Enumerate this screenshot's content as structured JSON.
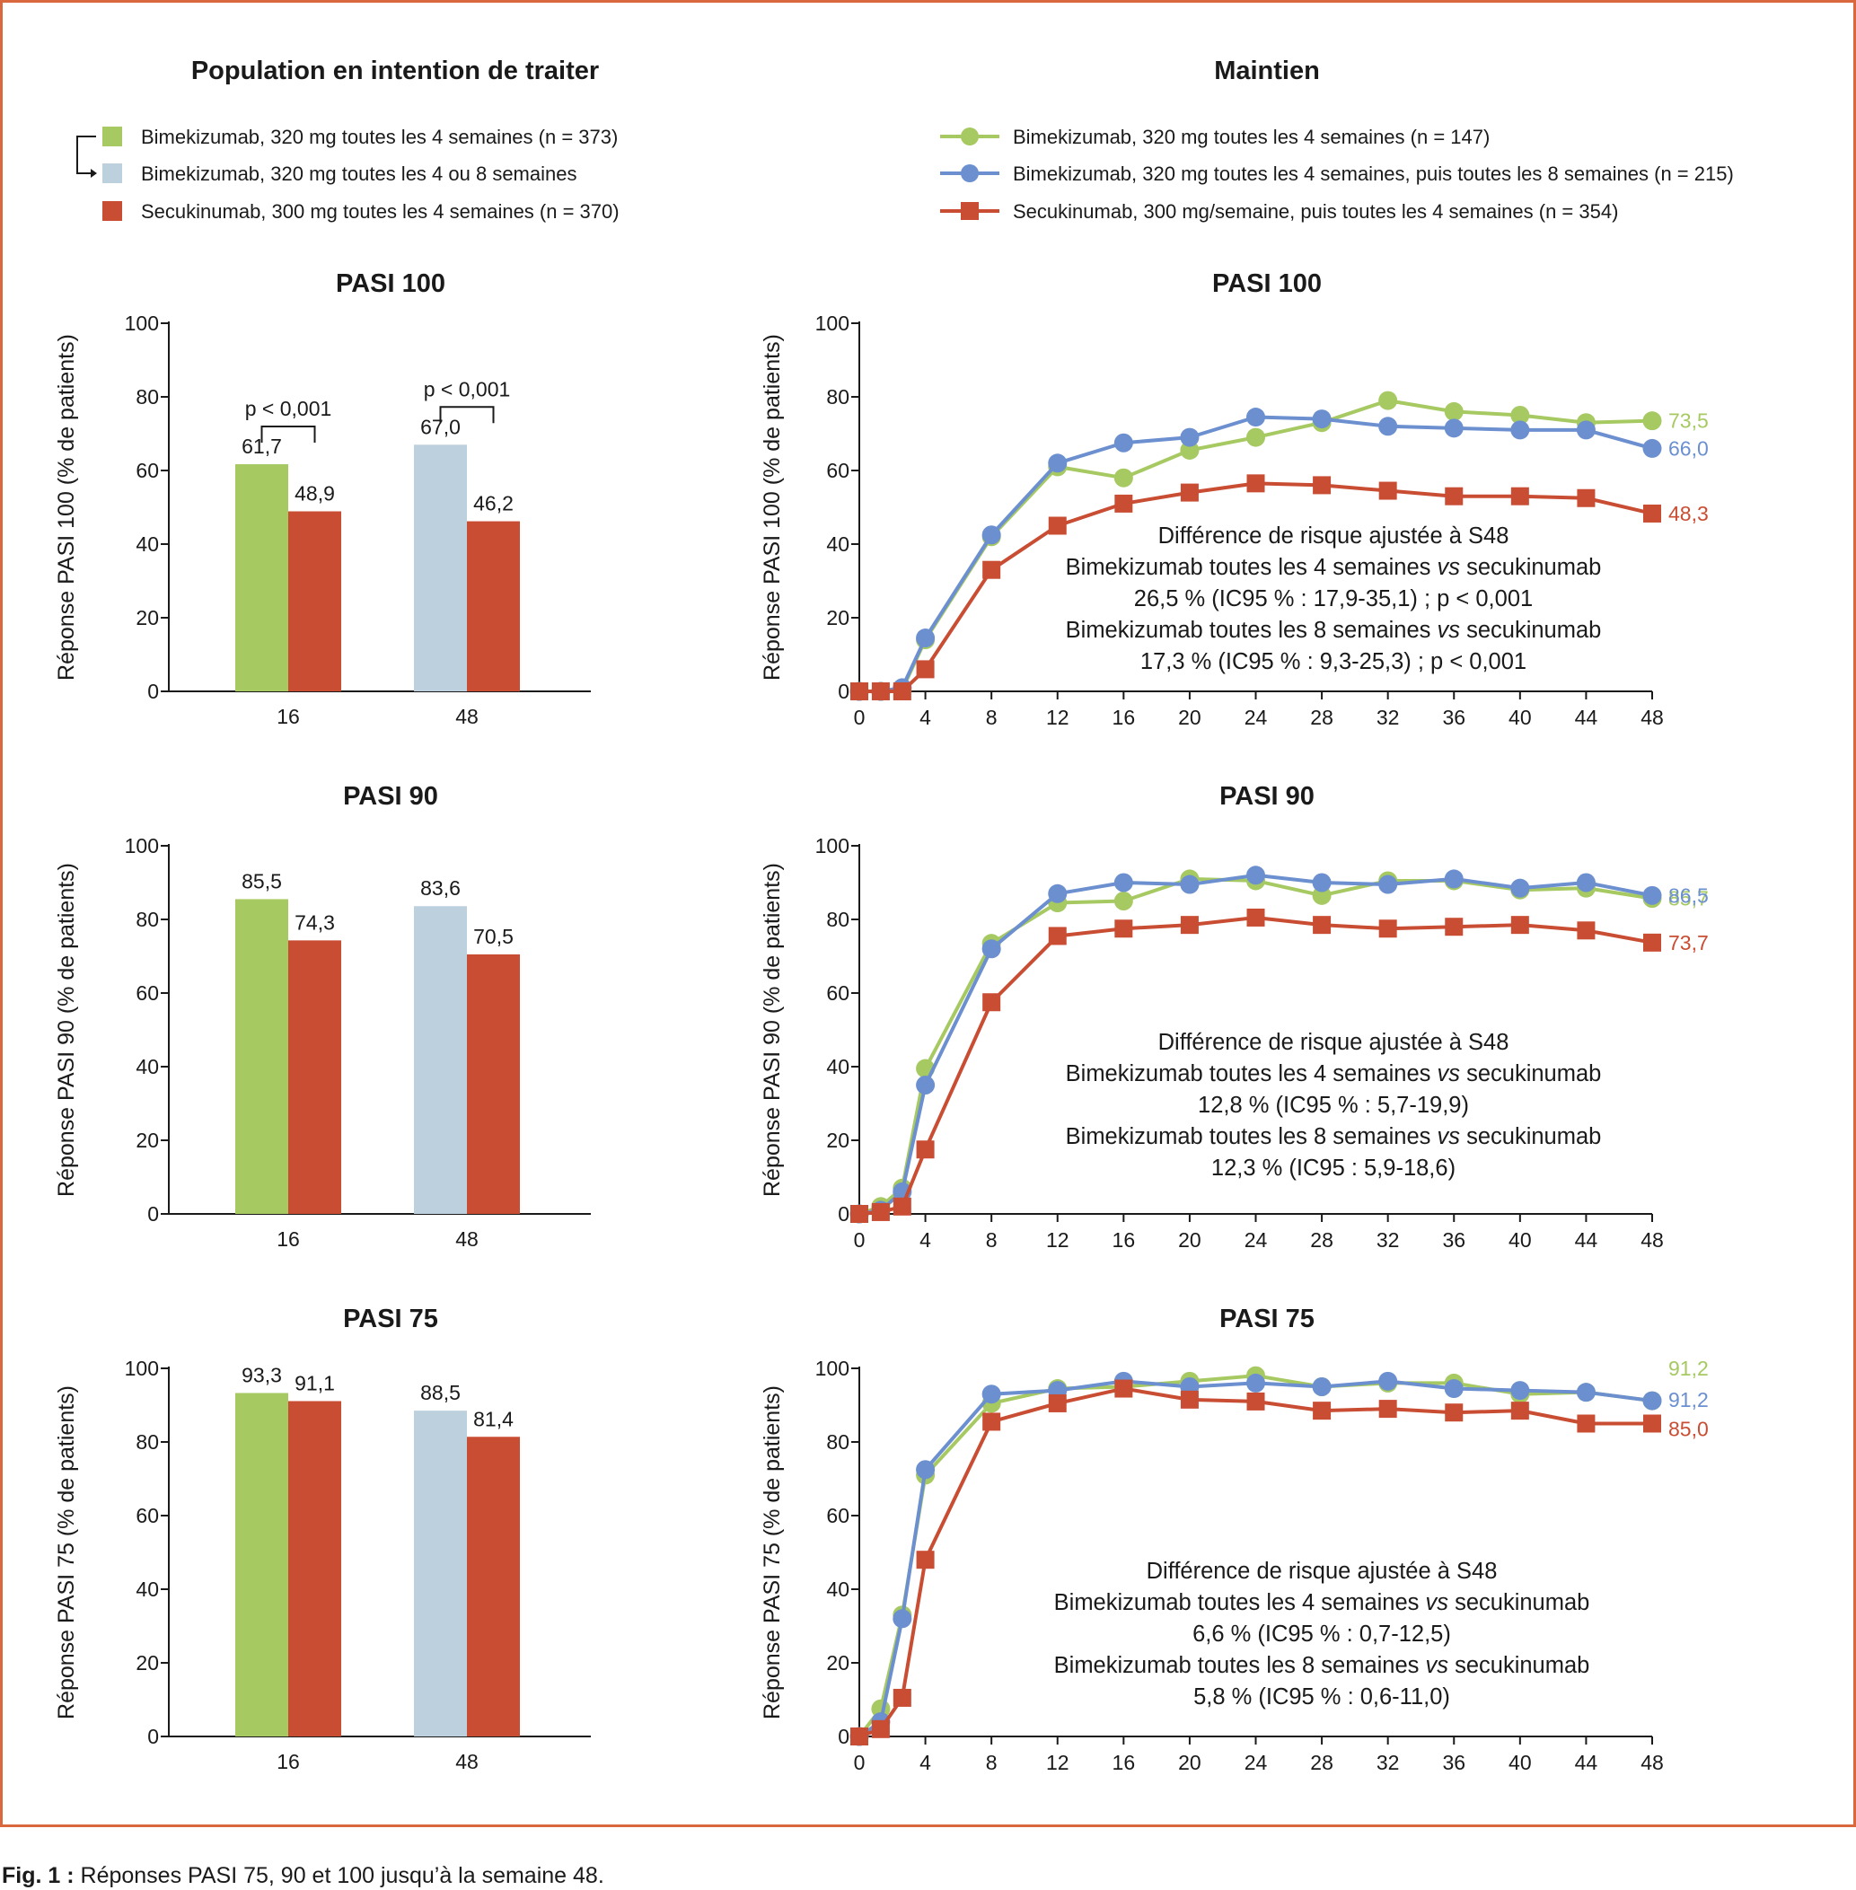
{
  "colors": {
    "green": "#a6c962",
    "lightblue": "#bdd0de",
    "blue": "#6b8fcf",
    "red": "#c94d33",
    "frame": "#d9683f",
    "text": "#1a1a1a"
  },
  "left_title": "Population en intention de traiter",
  "right_title": "Maintien",
  "left_legend": [
    {
      "label": "Bimekizumab, 320 mg toutes les 4 semaines (n = 373)",
      "color": "#a6c962"
    },
    {
      "label": "Bimekizumab, 320 mg toutes les 4 ou 8 semaines",
      "color": "#bdd0de"
    },
    {
      "label": "Secukinumab, 300 mg toutes les 4 semaines (n = 370)",
      "color": "#c94d33"
    }
  ],
  "right_legend": [
    {
      "label": "Bimekizumab, 320 mg toutes les 4 semaines (n = 147)",
      "color": "#a6c962",
      "marker": "circle"
    },
    {
      "label": "Bimekizumab, 320 mg toutes les 4 semaines, puis toutes les 8 semaines (n = 215)",
      "color": "#6b8fcf",
      "marker": "circle"
    },
    {
      "label": "Secukinumab, 300 mg/semaine, puis toutes les 4 semaines (n = 354)",
      "color": "#c94d33",
      "marker": "square"
    }
  ],
  "caption": {
    "bold": "Fig. 1 :",
    "text": " Réponses PASI 75, 90 et 100 jusqu’à la semaine 48."
  },
  "chart_data": [
    {
      "type": "bar",
      "title": "PASI 100",
      "ylabel": "Réponse PASI 100 (% de patients)",
      "ylim": [
        0,
        100
      ],
      "yticks": [
        0,
        20,
        40,
        60,
        80,
        100
      ],
      "categories": [
        "16",
        "48"
      ],
      "bars": [
        {
          "category": "16",
          "value": 61.7,
          "label": "61,7",
          "color": "#a6c962"
        },
        {
          "category": "16",
          "value": 48.9,
          "label": "48,9",
          "color": "#c94d33"
        },
        {
          "category": "48",
          "value": 67.0,
          "label": "67,0",
          "color": "#bdd0de"
        },
        {
          "category": "48",
          "value": 46.2,
          "label": "46,2",
          "color": "#c94d33"
        }
      ],
      "pvalues": [
        {
          "category": "16",
          "text": "p < 0,001"
        },
        {
          "category": "48",
          "text": "p < 0,001"
        }
      ]
    },
    {
      "type": "bar",
      "title": "PASI 90",
      "ylabel": "Réponse PASI 90 (% de patients)",
      "ylim": [
        0,
        100
      ],
      "yticks": [
        0,
        20,
        40,
        60,
        80,
        100
      ],
      "categories": [
        "16",
        "48"
      ],
      "bars": [
        {
          "category": "16",
          "value": 85.5,
          "label": "85,5",
          "color": "#a6c962"
        },
        {
          "category": "16",
          "value": 74.3,
          "label": "74,3",
          "color": "#c94d33"
        },
        {
          "category": "48",
          "value": 83.6,
          "label": "83,6",
          "color": "#bdd0de"
        },
        {
          "category": "48",
          "value": 70.5,
          "label": "70,5",
          "color": "#c94d33"
        }
      ],
      "pvalues": []
    },
    {
      "type": "bar",
      "title": "PASI 75",
      "ylabel": "Réponse PASI 75 (% de patients)",
      "ylim": [
        0,
        100
      ],
      "yticks": [
        0,
        20,
        40,
        60,
        80,
        100
      ],
      "categories": [
        "16",
        "48"
      ],
      "bars": [
        {
          "category": "16",
          "value": 93.3,
          "label": "93,3",
          "color": "#a6c962"
        },
        {
          "category": "16",
          "value": 91.1,
          "label": "91,1",
          "color": "#c94d33"
        },
        {
          "category": "48",
          "value": 88.5,
          "label": "88,5",
          "color": "#bdd0de"
        },
        {
          "category": "48",
          "value": 81.4,
          "label": "81,4",
          "color": "#c94d33"
        }
      ],
      "pvalues": []
    },
    {
      "type": "line",
      "title": "PASI 100",
      "ylabel": "Réponse PASI 100 (% de patients)",
      "ylim": [
        0,
        100
      ],
      "xlim": [
        0,
        48
      ],
      "yticks": [
        0,
        20,
        40,
        60,
        80,
        100
      ],
      "xticks": [
        0,
        4,
        8,
        12,
        16,
        20,
        24,
        28,
        32,
        36,
        40,
        44,
        48
      ],
      "series": [
        {
          "color": "#a6c962",
          "marker": "circle",
          "end_label": "73,5",
          "x": [
            0,
            1.3,
            2.6,
            4,
            8,
            12,
            16,
            20,
            24,
            28,
            32,
            36,
            40,
            44,
            48
          ],
          "y": [
            0,
            0,
            0.5,
            14,
            42,
            61,
            58,
            65.5,
            69,
            73,
            79,
            76,
            75,
            73,
            73.5
          ]
        },
        {
          "color": "#6b8fcf",
          "marker": "circle",
          "end_label": "66,0",
          "x": [
            0,
            1.3,
            2.6,
            4,
            8,
            12,
            16,
            20,
            24,
            28,
            32,
            36,
            40,
            44,
            48
          ],
          "y": [
            0,
            0,
            1,
            14.5,
            42.5,
            62,
            67.5,
            69,
            74.5,
            74,
            72,
            71.5,
            71,
            71,
            66
          ]
        },
        {
          "color": "#c94d33",
          "marker": "square",
          "end_label": "48,3",
          "x": [
            0,
            1.3,
            2.6,
            4,
            8,
            12,
            16,
            20,
            24,
            28,
            32,
            36,
            40,
            44,
            48
          ],
          "y": [
            0,
            0,
            0,
            6,
            33,
            45,
            51,
            54,
            56.5,
            56,
            54.5,
            53,
            53,
            52.5,
            48.3
          ]
        }
      ],
      "end_label_y": [
        73.5,
        66.0,
        48.3
      ],
      "annotation": [
        "Différence de risque ajustée à S48",
        "Bimekizumab toutes les 4 semaines vs secukinumab",
        "26,5 % (IC95 % : 17,9-35,1) ; p < 0,001",
        "Bimekizumab toutes les 8 semaines vs secukinumab",
        "17,3 % (IC95 % : 9,3-25,3) ; p < 0,001"
      ]
    },
    {
      "type": "line",
      "title": "PASI 90",
      "ylabel": "Réponse PASI 90 (% de patients)",
      "ylim": [
        0,
        100
      ],
      "xlim": [
        0,
        48
      ],
      "yticks": [
        0,
        20,
        40,
        60,
        80,
        100
      ],
      "xticks": [
        0,
        4,
        8,
        12,
        16,
        20,
        24,
        28,
        32,
        36,
        40,
        44,
        48
      ],
      "series": [
        {
          "color": "#a6c962",
          "marker": "circle",
          "end_label": "85,7",
          "x": [
            0,
            1.3,
            2.6,
            4,
            8,
            12,
            16,
            20,
            24,
            28,
            32,
            36,
            40,
            44,
            48
          ],
          "y": [
            0,
            2,
            7,
            39.5,
            73.5,
            84.5,
            85,
            91,
            90.5,
            86.5,
            90.5,
            90.5,
            88,
            88.5,
            85.7
          ]
        },
        {
          "color": "#6b8fcf",
          "marker": "circle",
          "end_label": "86,5",
          "x": [
            0,
            1.3,
            2.6,
            4,
            8,
            12,
            16,
            20,
            24,
            28,
            32,
            36,
            40,
            44,
            48
          ],
          "y": [
            0,
            1,
            6,
            35,
            72,
            87,
            90,
            89.5,
            92,
            90,
            89.5,
            91,
            88.5,
            90,
            86.5
          ]
        },
        {
          "color": "#c94d33",
          "marker": "square",
          "end_label": "73,7",
          "x": [
            0,
            1.3,
            2.6,
            4,
            8,
            12,
            16,
            20,
            24,
            28,
            32,
            36,
            40,
            44,
            48
          ],
          "y": [
            0,
            0.5,
            2,
            17.5,
            57.5,
            75.5,
            77.5,
            78.5,
            80.5,
            78.5,
            77.5,
            78,
            78.5,
            77,
            73.7
          ]
        }
      ],
      "end_label_y": [
        85.7,
        86.5,
        73.7
      ],
      "annotation": [
        "Différence de risque ajustée à S48",
        "Bimekizumab toutes les 4 semaines vs secukinumab",
        "12,8 % (IC95 % : 5,7-19,9)",
        "Bimekizumab toutes les 8 semaines vs secukinumab",
        "12,3 % (IC95 : 5,9-18,6)"
      ]
    },
    {
      "type": "line",
      "title": "PASI 75",
      "ylabel": "Réponse PASI 75 (% de patients)",
      "ylim": [
        0,
        100
      ],
      "xlim": [
        0,
        48
      ],
      "yticks": [
        0,
        20,
        40,
        60,
        80,
        100
      ],
      "xticks": [
        0,
        4,
        8,
        12,
        16,
        20,
        24,
        28,
        32,
        36,
        40,
        44,
        48
      ],
      "series": [
        {
          "color": "#a6c962",
          "marker": "circle",
          "end_label": "91,2",
          "x": [
            0,
            1.3,
            2.6,
            4,
            8,
            12,
            16,
            20,
            24,
            28,
            32,
            36,
            40,
            44,
            48
          ],
          "y": [
            0,
            7.5,
            33,
            71,
            90.5,
            94.5,
            95,
            96.5,
            98,
            95,
            96,
            96,
            93,
            93.5,
            91.2
          ]
        },
        {
          "color": "#6b8fcf",
          "marker": "circle",
          "end_label": "91,2",
          "x": [
            0,
            1.3,
            2.6,
            4,
            8,
            12,
            16,
            20,
            24,
            28,
            32,
            36,
            40,
            44,
            48
          ],
          "y": [
            0,
            4,
            32,
            72.5,
            93,
            94,
            96.5,
            95,
            96,
            95,
            96.5,
            94.5,
            94,
            93.5,
            91.2
          ]
        },
        {
          "color": "#c94d33",
          "marker": "square",
          "end_label": "85,0",
          "x": [
            0,
            1.3,
            2.6,
            4,
            8,
            12,
            16,
            20,
            24,
            28,
            32,
            36,
            40,
            44,
            48
          ],
          "y": [
            0,
            2,
            10.5,
            48,
            85.5,
            90.5,
            94.5,
            91.5,
            91,
            88.5,
            89,
            88,
            88.5,
            85,
            85.0
          ]
        }
      ],
      "end_label_y": [
        100,
        91.5,
        83.5
      ],
      "annotation": [
        "Différence de risque ajustée à S48",
        "Bimekizumab toutes les 4 semaines vs secukinumab",
        "6,6 % (IC95 % : 0,7-12,5)",
        "Bimekizumab toutes les 8 semaines vs secukinumab",
        "5,8 % (IC95 % : 0,6-11,0)"
      ]
    }
  ]
}
